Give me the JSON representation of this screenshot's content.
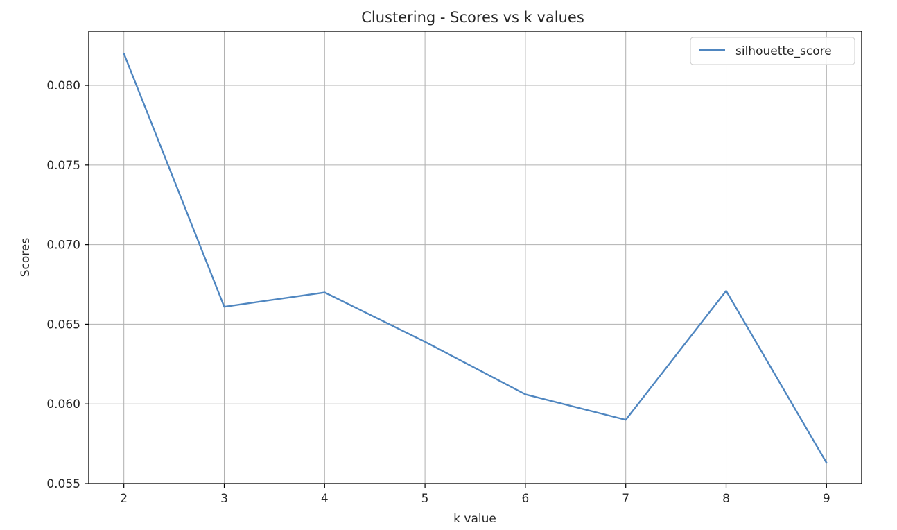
{
  "chart_data": {
    "type": "line",
    "title": "Clustering - Scores vs k values",
    "xlabel": "k value",
    "ylabel": "Scores",
    "x": [
      2,
      3,
      4,
      5,
      6,
      7,
      8,
      9
    ],
    "series": [
      {
        "name": "silhouette_score",
        "color": "#4f86c0",
        "values": [
          0.082,
          0.0661,
          0.067,
          0.0639,
          0.0606,
          0.059,
          0.0671,
          0.0563
        ]
      }
    ],
    "xticks": [
      "2",
      "3",
      "4",
      "5",
      "6",
      "7",
      "8",
      "9"
    ],
    "yticks": [
      "0.055",
      "0.060",
      "0.065",
      "0.070",
      "0.075",
      "0.080"
    ],
    "xlim": [
      1.65,
      9.35
    ],
    "ylim": [
      0.055,
      0.0834
    ],
    "grid": true,
    "legend_position": "top-right"
  }
}
